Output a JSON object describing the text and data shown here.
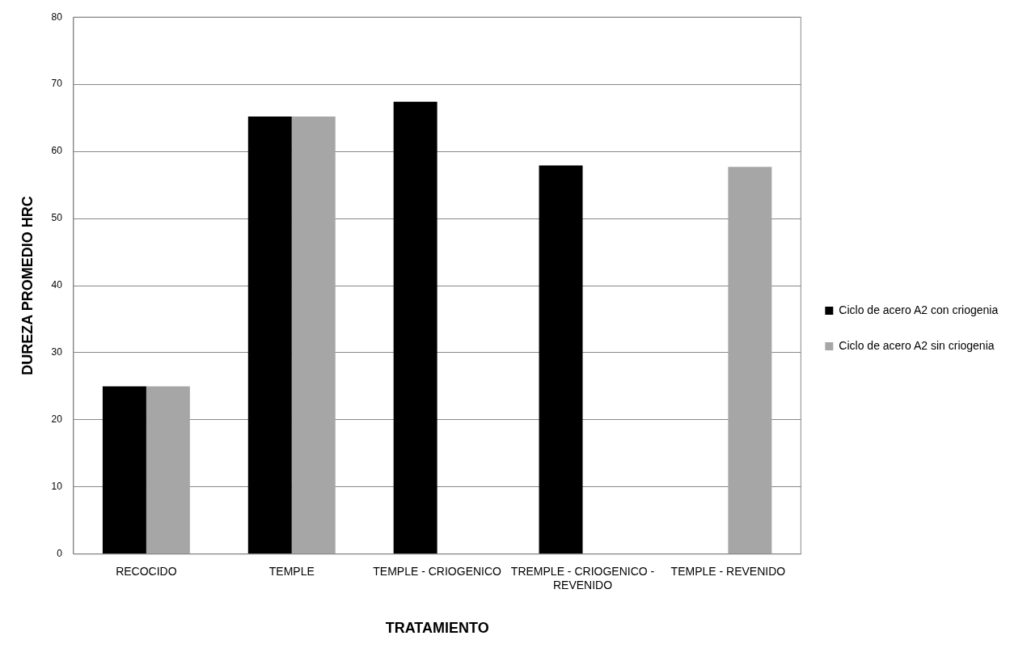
{
  "chart_data": {
    "type": "bar",
    "xlabel": "TRATAMIENTO",
    "ylabel": "DUREZA PROMEDIO HRC",
    "categories": [
      "RECOCIDO",
      "TEMPLE",
      "TEMPLE - CRIOGENICO",
      "TREMPLE - CRIOGENICO - REVENIDO",
      "TEMPLE - REVENIDO"
    ],
    "series": [
      {
        "name": "Ciclo de acero A2 con criogenia",
        "color": "#000000",
        "values": [
          25,
          65.2,
          67.4,
          57.9,
          null
        ]
      },
      {
        "name": "Ciclo de acero A2 sin criogenia",
        "color": "#a6a6a6",
        "values": [
          25,
          65.2,
          null,
          null,
          57.7
        ]
      }
    ],
    "ylim": [
      0,
      80
    ],
    "yticks": [
      0,
      10,
      20,
      30,
      40,
      50,
      60,
      70,
      80
    ],
    "grid": "y",
    "legend": "right"
  }
}
